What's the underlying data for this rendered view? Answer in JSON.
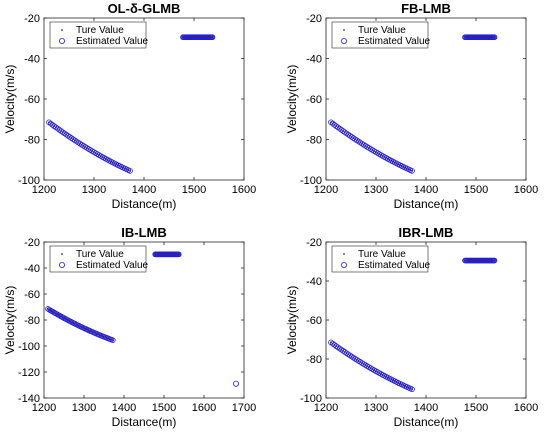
{
  "chart_data": [
    {
      "type": "scatter",
      "title": "OL-δ-GLMB",
      "xlabel": "Distance(m)",
      "ylabel": "Velocity(m/s)",
      "xlim": [
        1200,
        1600
      ],
      "ylim": [
        -100,
        -20
      ],
      "xticks": [
        1200,
        1300,
        1400,
        1500,
        1600
      ],
      "yticks": [
        -20,
        -40,
        -60,
        -80,
        -100
      ],
      "legend": [
        "Ture Value",
        "Estimated Value"
      ],
      "legend_position": "top-left",
      "series": [
        {
          "name": "Ture Value",
          "marker": "dot",
          "color": "#3b1f8a",
          "segments": [
            {
              "x_start": 1210,
              "x_end": 1372,
              "y_start": -71.5,
              "y_end": -95.5,
              "count": 48,
              "curve": -0.12
            },
            {
              "x_start": 1478,
              "x_end": 1537,
              "y_start": -29.5,
              "y_end": -29.5,
              "count": 36,
              "curve": 0
            }
          ]
        },
        {
          "name": "Estimated Value",
          "marker": "circle",
          "color": "#1f1fe0",
          "segments": [
            {
              "x_start": 1210,
              "x_end": 1372,
              "y_start": -71.5,
              "y_end": -95.5,
              "count": 48,
              "curve": -0.12
            },
            {
              "x_start": 1478,
              "x_end": 1537,
              "y_start": -29.5,
              "y_end": -29.5,
              "count": 36,
              "curve": 0
            }
          ],
          "outliers": []
        }
      ]
    },
    {
      "type": "scatter",
      "title": "FB-LMB",
      "xlabel": "Distance(m)",
      "ylabel": "Velocity(m/s)",
      "xlim": [
        1200,
        1600
      ],
      "ylim": [
        -100,
        -20
      ],
      "xticks": [
        1200,
        1300,
        1400,
        1500,
        1600
      ],
      "yticks": [
        -20,
        -40,
        -60,
        -80,
        -100
      ],
      "legend": [
        "Ture Value",
        "Estimated Value"
      ],
      "legend_position": "top-left",
      "series": [
        {
          "name": "Ture Value",
          "marker": "dot",
          "color": "#3b1f8a",
          "segments": [
            {
              "x_start": 1210,
              "x_end": 1372,
              "y_start": -71.5,
              "y_end": -95.5,
              "count": 48,
              "curve": -0.12
            },
            {
              "x_start": 1478,
              "x_end": 1537,
              "y_start": -29.5,
              "y_end": -29.5,
              "count": 36,
              "curve": 0
            }
          ]
        },
        {
          "name": "Estimated Value",
          "marker": "circle",
          "color": "#1f1fe0",
          "segments": [
            {
              "x_start": 1210,
              "x_end": 1372,
              "y_start": -71.5,
              "y_end": -95.5,
              "count": 48,
              "curve": -0.12
            },
            {
              "x_start": 1478,
              "x_end": 1537,
              "y_start": -29.5,
              "y_end": -29.5,
              "count": 36,
              "curve": 0
            }
          ],
          "outliers": []
        }
      ]
    },
    {
      "type": "scatter",
      "title": "IB-LMB",
      "xlabel": "Distance(m)",
      "ylabel": "Velocity(m/s)",
      "xlim": [
        1200,
        1700
      ],
      "ylim": [
        -140,
        -20
      ],
      "xticks": [
        1200,
        1300,
        1400,
        1500,
        1600,
        1700
      ],
      "yticks": [
        -20,
        -40,
        -60,
        -80,
        -100,
        -120,
        -140
      ],
      "legend": [
        "Ture Value",
        "Estimated Value"
      ],
      "legend_position": "top-left",
      "series": [
        {
          "name": "Ture Value",
          "marker": "dot",
          "color": "#3b1f8a",
          "segments": [
            {
              "x_start": 1210,
              "x_end": 1372,
              "y_start": -71.5,
              "y_end": -95.5,
              "count": 48,
              "curve": -0.12
            },
            {
              "x_start": 1478,
              "x_end": 1537,
              "y_start": -29.5,
              "y_end": -29.5,
              "count": 36,
              "curve": 0
            }
          ]
        },
        {
          "name": "Estimated Value",
          "marker": "circle",
          "color": "#1f1fe0",
          "segments": [
            {
              "x_start": 1210,
              "x_end": 1372,
              "y_start": -71.5,
              "y_end": -95.5,
              "count": 48,
              "curve": -0.12
            },
            {
              "x_start": 1478,
              "x_end": 1537,
              "y_start": -29.5,
              "y_end": -29.5,
              "count": 36,
              "curve": 0
            }
          ],
          "outliers": [
            {
              "x": 1680,
              "y": -129
            }
          ]
        }
      ]
    },
    {
      "type": "scatter",
      "title": "IBR-LMB",
      "xlabel": "Distance(m)",
      "ylabel": "Velocity(m/s)",
      "xlim": [
        1200,
        1600
      ],
      "ylim": [
        -100,
        -20
      ],
      "xticks": [
        1200,
        1300,
        1400,
        1500,
        1600
      ],
      "yticks": [
        -20,
        -40,
        -60,
        -80,
        -100
      ],
      "legend": [
        "Ture Value",
        "Estimated Value"
      ],
      "legend_position": "top-left",
      "series": [
        {
          "name": "Ture Value",
          "marker": "dot",
          "color": "#3b1f8a",
          "segments": [
            {
              "x_start": 1210,
              "x_end": 1372,
              "y_start": -71.5,
              "y_end": -95.5,
              "count": 48,
              "curve": -0.12
            },
            {
              "x_start": 1478,
              "x_end": 1537,
              "y_start": -29.5,
              "y_end": -29.5,
              "count": 36,
              "curve": 0
            }
          ]
        },
        {
          "name": "Estimated Value",
          "marker": "circle",
          "color": "#1f1fe0",
          "segments": [
            {
              "x_start": 1210,
              "x_end": 1372,
              "y_start": -71.5,
              "y_end": -95.5,
              "count": 48,
              "curve": -0.12
            },
            {
              "x_start": 1478,
              "x_end": 1537,
              "y_start": -29.5,
              "y_end": -29.5,
              "count": 36,
              "curve": 0
            }
          ],
          "outliers": []
        }
      ]
    }
  ]
}
